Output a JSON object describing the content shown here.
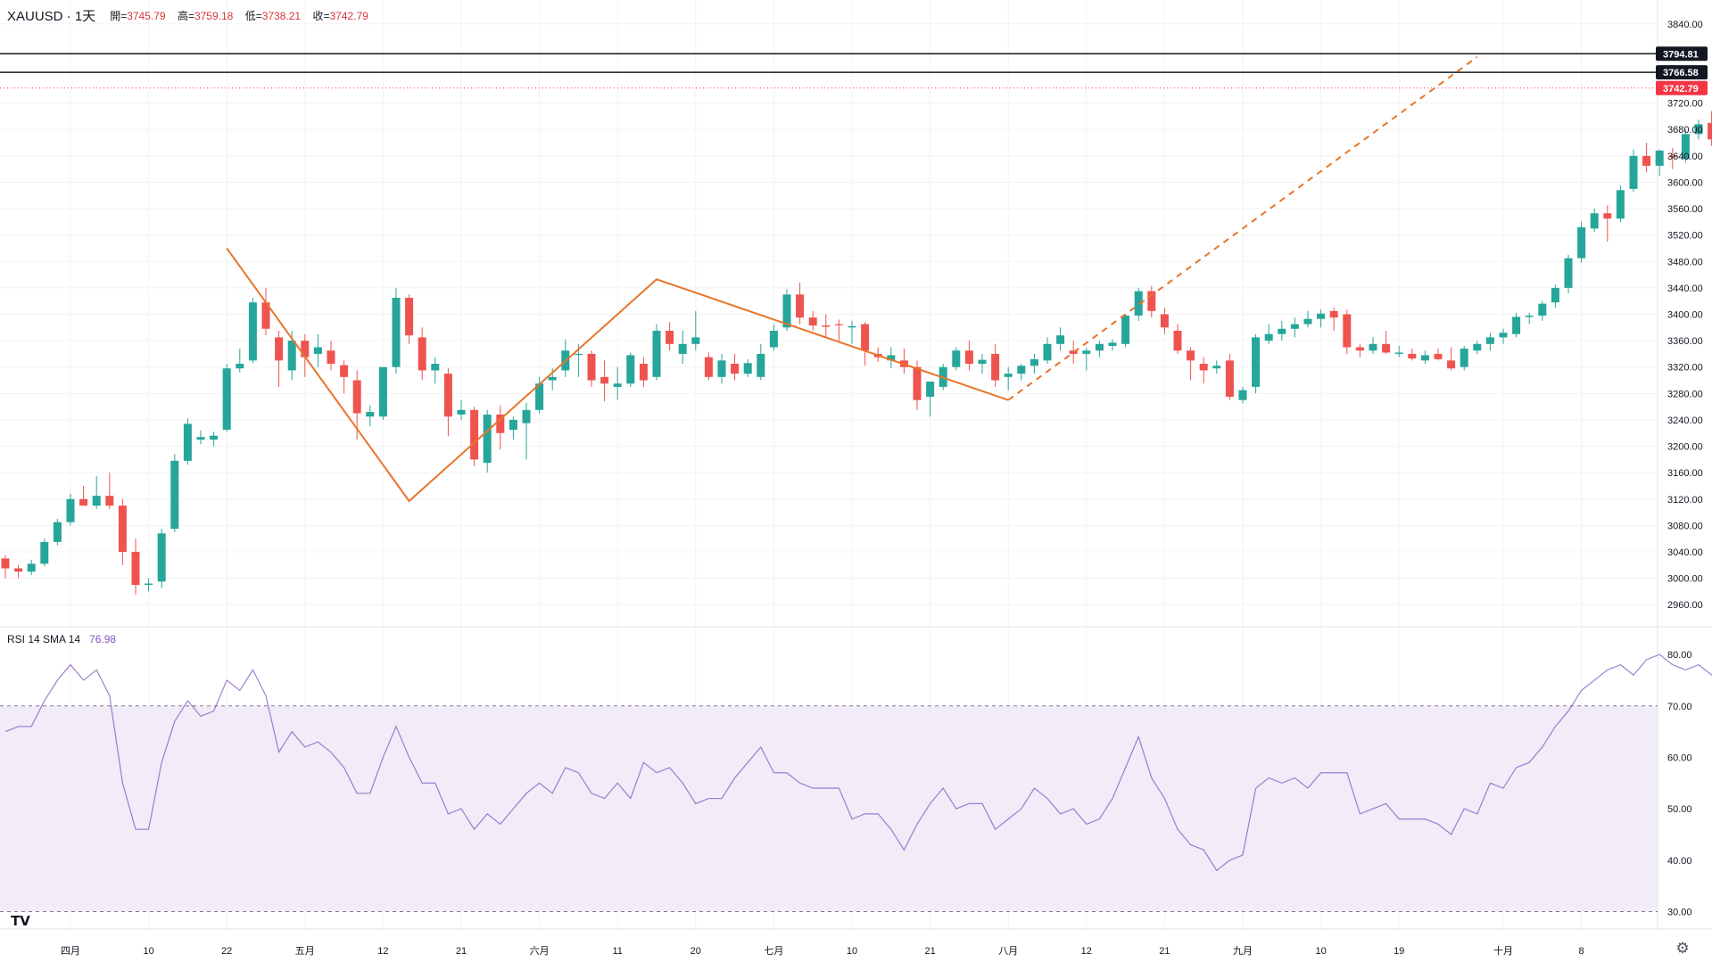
{
  "header": {
    "symbol": "XAUUSD · 1天",
    "open_label": "開=",
    "open": "3745.79",
    "high_label": "高=",
    "high": "3759.18",
    "low_label": "低=",
    "low": "3738.21",
    "close_label": "收=",
    "close": "3742.79"
  },
  "rsi_header": {
    "label": "RSI 14 SMA 14",
    "value": "76.98"
  },
  "icons": {
    "logo": "tradingview-logo-icon",
    "settings": "gear-icon"
  },
  "colors": {
    "up": "#26a69a",
    "down": "#ef5350",
    "drawing": "#e8742a",
    "rsi_line": "#7e57c2",
    "rsi_band": "#ede7f6",
    "last_price": "#f23645"
  },
  "chart_data": [
    {
      "type": "candlestick",
      "symbol": "XAUUSD",
      "interval": "1天",
      "ylim": [
        2940,
        3860
      ],
      "y_ticks": [
        "3840.00",
        "3720.00",
        "3680.00",
        "3640.00",
        "3600.00",
        "3560.00",
        "3520.00",
        "3480.00",
        "3440.00",
        "3400.00",
        "3360.00",
        "3320.00",
        "3280.00",
        "3240.00",
        "3200.00",
        "3160.00",
        "3120.00",
        "3080.00",
        "3040.00",
        "3000.00",
        "2960.00"
      ],
      "x_ticks": [
        {
          "label": "四月",
          "bar": 5
        },
        {
          "label": "10",
          "bar": 11
        },
        {
          "label": "22",
          "bar": 17
        },
        {
          "label": "五月",
          "bar": 23
        },
        {
          "label": "12",
          "bar": 29
        },
        {
          "label": "21",
          "bar": 35
        },
        {
          "label": "六月",
          "bar": 41
        },
        {
          "label": "11",
          "bar": 47
        },
        {
          "label": "20",
          "bar": 53
        },
        {
          "label": "七月",
          "bar": 59
        },
        {
          "label": "10",
          "bar": 65
        },
        {
          "label": "21",
          "bar": 71
        },
        {
          "label": "八月",
          "bar": 77
        },
        {
          "label": "12",
          "bar": 83
        },
        {
          "label": "21",
          "bar": 89
        },
        {
          "label": "九月",
          "bar": 95
        },
        {
          "label": "10",
          "bar": 101
        },
        {
          "label": "19",
          "bar": 107
        },
        {
          "label": "十月",
          "bar": 115
        },
        {
          "label": "8",
          "bar": 121
        }
      ],
      "price_labels": [
        {
          "text": "3794.81",
          "value": 3794.81,
          "style": "line"
        },
        {
          "text": "3766.58",
          "value": 3766.58,
          "style": "line"
        },
        {
          "text": "3742.79",
          "value": 3742.79,
          "style": "last"
        }
      ],
      "bars": [
        [
          3030,
          3035,
          3000,
          3015
        ],
        [
          3015,
          3020,
          3000,
          3010
        ],
        [
          3010,
          3028,
          3005,
          3022
        ],
        [
          3022,
          3060,
          3018,
          3055
        ],
        [
          3055,
          3090,
          3050,
          3085
        ],
        [
          3085,
          3128,
          3080,
          3120
        ],
        [
          3120,
          3140,
          3110,
          3110
        ],
        [
          3110,
          3155,
          3105,
          3125
        ],
        [
          3125,
          3160,
          3105,
          3110
        ],
        [
          3110,
          3120,
          3020,
          3040
        ],
        [
          3040,
          3060,
          2975,
          2990
        ],
        [
          2990,
          3000,
          2980,
          2992
        ],
        [
          2995,
          3075,
          2985,
          3068
        ],
        [
          3075,
          3188,
          3070,
          3178
        ],
        [
          3178,
          3242,
          3172,
          3234
        ],
        [
          3210,
          3224,
          3203,
          3214
        ],
        [
          3210,
          3222,
          3200,
          3216
        ],
        [
          3225,
          3325,
          3222,
          3318
        ],
        [
          3318,
          3348,
          3312,
          3325
        ],
        [
          3330,
          3425,
          3326,
          3418
        ],
        [
          3418,
          3440,
          3368,
          3378
        ],
        [
          3365,
          3375,
          3290,
          3330
        ],
        [
          3315,
          3375,
          3300,
          3360
        ],
        [
          3360,
          3370,
          3305,
          3335
        ],
        [
          3340,
          3370,
          3320,
          3350
        ],
        [
          3345,
          3360,
          3315,
          3325
        ],
        [
          3323,
          3330,
          3280,
          3305
        ],
        [
          3300,
          3315,
          3210,
          3250
        ],
        [
          3245,
          3262,
          3230,
          3252
        ],
        [
          3245,
          3310,
          3240,
          3320
        ],
        [
          3320,
          3440,
          3310,
          3425
        ],
        [
          3425,
          3430,
          3355,
          3368
        ],
        [
          3365,
          3380,
          3300,
          3315
        ],
        [
          3315,
          3335,
          3295,
          3325
        ],
        [
          3310,
          3318,
          3215,
          3245
        ],
        [
          3248,
          3270,
          3240,
          3255
        ],
        [
          3255,
          3260,
          3170,
          3180
        ],
        [
          3175,
          3255,
          3160,
          3248
        ],
        [
          3248,
          3262,
          3195,
          3220
        ],
        [
          3225,
          3245,
          3210,
          3240
        ],
        [
          3235,
          3266,
          3180,
          3255
        ],
        [
          3255,
          3305,
          3250,
          3295
        ],
        [
          3300,
          3318,
          3285,
          3305
        ],
        [
          3315,
          3362,
          3305,
          3345
        ],
        [
          3340,
          3355,
          3305,
          3340
        ],
        [
          3340,
          3345,
          3290,
          3300
        ],
        [
          3305,
          3330,
          3268,
          3295
        ],
        [
          3290,
          3320,
          3270,
          3295
        ],
        [
          3295,
          3342,
          3290,
          3338
        ],
        [
          3325,
          3335,
          3290,
          3300
        ],
        [
          3305,
          3385,
          3300,
          3375
        ],
        [
          3375,
          3388,
          3345,
          3355
        ],
        [
          3340,
          3375,
          3325,
          3355
        ],
        [
          3355,
          3405,
          3345,
          3365
        ],
        [
          3335,
          3342,
          3300,
          3305
        ],
        [
          3305,
          3340,
          3295,
          3330
        ],
        [
          3325,
          3340,
          3300,
          3310
        ],
        [
          3310,
          3332,
          3305,
          3326
        ],
        [
          3305,
          3355,
          3300,
          3340
        ],
        [
          3350,
          3385,
          3345,
          3375
        ],
        [
          3380,
          3438,
          3375,
          3430
        ],
        [
          3430,
          3448,
          3385,
          3395
        ],
        [
          3395,
          3405,
          3375,
          3383
        ],
        [
          3383,
          3400,
          3365,
          3381
        ],
        [
          3385,
          3392,
          3360,
          3384
        ],
        [
          3380,
          3390,
          3355,
          3382
        ],
        [
          3385,
          3388,
          3322,
          3345
        ],
        [
          3340,
          3350,
          3328,
          3335
        ],
        [
          3330,
          3350,
          3318,
          3338
        ],
        [
          3330,
          3348,
          3310,
          3320
        ],
        [
          3320,
          3330,
          3255,
          3270
        ],
        [
          3275,
          3290,
          3245,
          3298
        ],
        [
          3290,
          3325,
          3285,
          3320
        ],
        [
          3320,
          3350,
          3315,
          3345
        ],
        [
          3345,
          3360,
          3315,
          3325
        ],
        [
          3325,
          3340,
          3310,
          3331
        ],
        [
          3340,
          3355,
          3290,
          3300
        ],
        [
          3305,
          3320,
          3285,
          3310
        ],
        [
          3310,
          3325,
          3300,
          3322
        ],
        [
          3322,
          3340,
          3310,
          3332
        ],
        [
          3330,
          3365,
          3325,
          3355
        ],
        [
          3355,
          3380,
          3345,
          3368
        ],
        [
          3345,
          3360,
          3325,
          3340
        ],
        [
          3340,
          3350,
          3315,
          3345
        ],
        [
          3345,
          3360,
          3335,
          3355
        ],
        [
          3352,
          3362,
          3345,
          3357
        ],
        [
          3355,
          3400,
          3350,
          3398
        ],
        [
          3398,
          3440,
          3390,
          3435
        ],
        [
          3435,
          3443,
          3395,
          3405
        ],
        [
          3400,
          3410,
          3370,
          3380
        ],
        [
          3375,
          3385,
          3340,
          3345
        ],
        [
          3345,
          3350,
          3300,
          3330
        ],
        [
          3325,
          3335,
          3295,
          3315
        ],
        [
          3318,
          3330,
          3310,
          3322
        ],
        [
          3330,
          3340,
          3270,
          3275
        ],
        [
          3270,
          3290,
          3265,
          3285
        ],
        [
          3290,
          3370,
          3280,
          3365
        ],
        [
          3360,
          3385,
          3355,
          3370
        ],
        [
          3370,
          3390,
          3360,
          3378
        ],
        [
          3378,
          3395,
          3365,
          3385
        ],
        [
          3385,
          3405,
          3380,
          3393
        ],
        [
          3393,
          3407,
          3380,
          3401
        ],
        [
          3405,
          3410,
          3375,
          3395
        ],
        [
          3400,
          3407,
          3340,
          3350
        ],
        [
          3350,
          3355,
          3335,
          3345
        ],
        [
          3345,
          3365,
          3340,
          3355
        ],
        [
          3355,
          3375,
          3340,
          3342
        ],
        [
          3340,
          3352,
          3335,
          3342
        ]
      ],
      "bars_cont": [
        [
          3340,
          3348,
          3330,
          3333
        ],
        [
          3330,
          3345,
          3325,
          3338
        ],
        [
          3340,
          3348,
          3330,
          3332
        ],
        [
          3330,
          3350,
          3315,
          3318
        ],
        [
          3320,
          3352,
          3315,
          3348
        ],
        [
          3345,
          3360,
          3340,
          3355
        ],
        [
          3355,
          3372,
          3345,
          3365
        ],
        [
          3365,
          3378,
          3355,
          3372
        ],
        [
          3370,
          3402,
          3365,
          3396
        ],
        [
          3396,
          3402,
          3385,
          3398
        ],
        [
          3398,
          3420,
          3390,
          3416
        ],
        [
          3418,
          3445,
          3410,
          3440
        ],
        [
          3440,
          3490,
          3432,
          3485
        ],
        [
          3485,
          3540,
          3478,
          3532
        ],
        [
          3530,
          3560,
          3525,
          3553
        ],
        [
          3553,
          3565,
          3510,
          3545
        ],
        [
          3545,
          3595,
          3540,
          3588
        ],
        [
          3590,
          3650,
          3585,
          3640
        ],
        [
          3640,
          3660,
          3615,
          3625
        ],
        [
          3625,
          3650,
          3610,
          3648
        ],
        [
          3640,
          3652,
          3620,
          3638
        ],
        [
          3635,
          3680,
          3630,
          3673
        ],
        [
          3673,
          3695,
          3665,
          3688
        ],
        [
          3690,
          3708,
          3655,
          3665
        ],
        [
          3665,
          3680,
          3635,
          3650
        ],
        [
          3645,
          3690,
          3640,
          3685
        ],
        [
          3685,
          3750,
          3680,
          3745
        ],
        [
          3745,
          3759,
          3738,
          3742
        ]
      ],
      "drawings": [
        {
          "type": "zigzag",
          "points": [
            [
              17,
              3500
            ],
            [
              31,
              3117
            ],
            [
              50,
              3453
            ],
            [
              77,
              3270
            ]
          ]
        },
        {
          "type": "trend_ray_dashed",
          "points": [
            [
              77,
              3270
            ],
            [
              113,
              3790
            ]
          ]
        }
      ]
    },
    {
      "type": "line",
      "title": "RSI 14 SMA 14",
      "ylim": [
        28,
        84
      ],
      "y_ticks": [
        "80.00",
        "70.00",
        "60.00",
        "50.00",
        "40.00",
        "30.00"
      ],
      "band": [
        30,
        70
      ],
      "band_lines": [
        70,
        30
      ],
      "values": [
        65,
        66,
        66,
        71,
        75,
        78,
        75,
        77,
        72,
        55,
        46,
        46,
        59,
        67,
        71,
        68,
        69,
        75,
        73,
        77,
        72,
        61,
        65,
        62,
        63,
        61,
        58,
        53,
        53,
        60,
        66,
        60,
        55,
        55,
        49,
        50,
        46,
        49,
        47,
        50,
        53,
        55,
        53,
        58,
        57,
        53,
        52,
        55,
        52,
        59,
        57,
        58,
        55,
        51,
        52,
        52,
        56,
        59,
        62,
        57,
        57,
        55,
        54,
        54,
        54,
        48,
        49,
        49,
        46,
        42,
        47,
        51,
        54,
        50,
        51,
        51,
        46,
        48,
        50,
        54,
        52,
        49,
        50,
        47,
        48,
        52,
        58,
        64,
        56,
        52,
        46,
        43,
        42,
        38,
        40,
        41,
        54,
        56,
        55,
        56,
        54,
        57,
        57,
        57,
        49,
        50,
        51,
        48,
        48,
        48,
        47,
        45,
        50,
        49,
        55,
        54,
        58,
        59,
        62,
        66,
        69,
        73,
        75,
        77,
        78,
        76,
        79,
        80,
        78,
        77,
        78,
        76,
        77,
        79,
        81,
        79,
        73,
        70,
        74,
        78,
        77
      ]
    }
  ]
}
